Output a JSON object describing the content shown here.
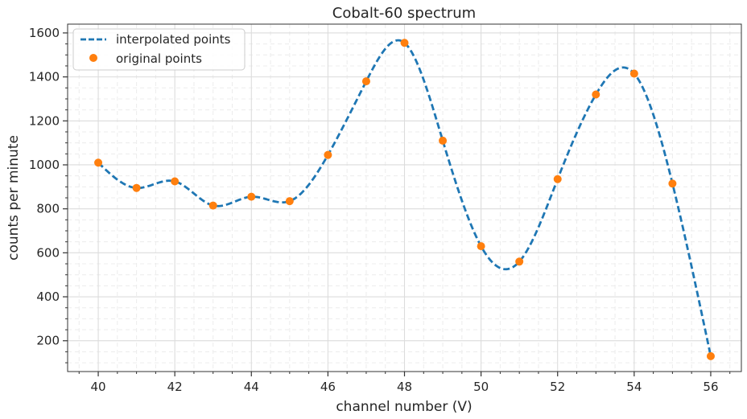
{
  "chart_data": {
    "type": "line",
    "title": "Cobalt-60 spectrum",
    "xlabel": "channel number (V)",
    "ylabel": "counts per minute",
    "xlim": [
      39.2,
      56.8
    ],
    "ylim": [
      60,
      1640
    ],
    "x_ticks": [
      40,
      42,
      44,
      46,
      48,
      50,
      52,
      54,
      56
    ],
    "y_ticks": [
      200,
      400,
      600,
      800,
      1000,
      1200,
      1400,
      1600
    ],
    "grid": true,
    "legend_position": "top-left",
    "series": [
      {
        "name": "interpolated points",
        "style": "dashed line",
        "color": "#1f77b4",
        "interpolation": "cubic spline through original points"
      },
      {
        "name": "original points",
        "style": "markers",
        "color": "#ff7f0e",
        "x": [
          40,
          41,
          42,
          43,
          44,
          45,
          46,
          47,
          48,
          49,
          50,
          51,
          52,
          53,
          54,
          55,
          56
        ],
        "y": [
          1010,
          895,
          925,
          815,
          855,
          835,
          1045,
          1380,
          1555,
          1110,
          630,
          560,
          935,
          1320,
          1415,
          915,
          130
        ]
      }
    ]
  }
}
